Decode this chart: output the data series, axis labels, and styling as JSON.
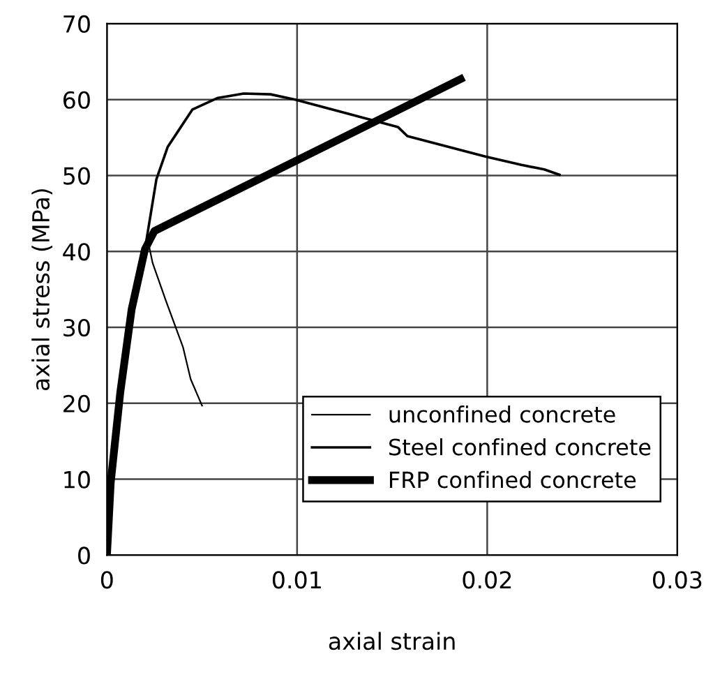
{
  "chart_data": {
    "type": "line",
    "xlabel": "axial strain",
    "ylabel": "axial stress (MPa)",
    "xlim": [
      0,
      0.03
    ],
    "ylim": [
      0,
      70
    ],
    "xticks": [
      0,
      0.01,
      0.02,
      0.03
    ],
    "yticks": [
      0,
      10,
      20,
      30,
      40,
      50,
      60,
      70
    ],
    "grid": true,
    "legend": "bottom right",
    "marker": "none",
    "line_style": "solid",
    "series": [
      {
        "name": "unconfined concrete",
        "color": "#000000",
        "x": [
          0,
          0.0002,
          0.0007,
          0.0013,
          0.0019,
          0.0022,
          0.0024,
          0.0031,
          0.004,
          0.0044,
          0.005
        ],
        "values": [
          0,
          9.6,
          21.4,
          32.4,
          39.5,
          40.9,
          38.5,
          33.5,
          27.4,
          23.2,
          19.7
        ]
      },
      {
        "name": "Steel confined concrete",
        "color": "#000000",
        "x": [
          0,
          0.0002,
          0.0007,
          0.0013,
          0.002,
          0.0026,
          0.0032,
          0.0045,
          0.0058,
          0.0072,
          0.0086,
          0.0099,
          0.0153,
          0.0158,
          0.0199,
          0.0218,
          0.023,
          0.0238
        ],
        "values": [
          0,
          9.6,
          21.4,
          32.4,
          40.3,
          49.5,
          53.8,
          58.7,
          60.2,
          60.8,
          60.7,
          60.0,
          56.4,
          55.2,
          52.5,
          51.4,
          50.8,
          50.1
        ]
      },
      {
        "name": "FRP confined concrete",
        "color": "#000000",
        "x": [
          0,
          0.0002,
          0.0007,
          0.0013,
          0.002,
          0.0025,
          0.0186
        ],
        "values": [
          0,
          9.6,
          21.4,
          32.4,
          40.3,
          42.7,
          62.7
        ]
      }
    ]
  }
}
